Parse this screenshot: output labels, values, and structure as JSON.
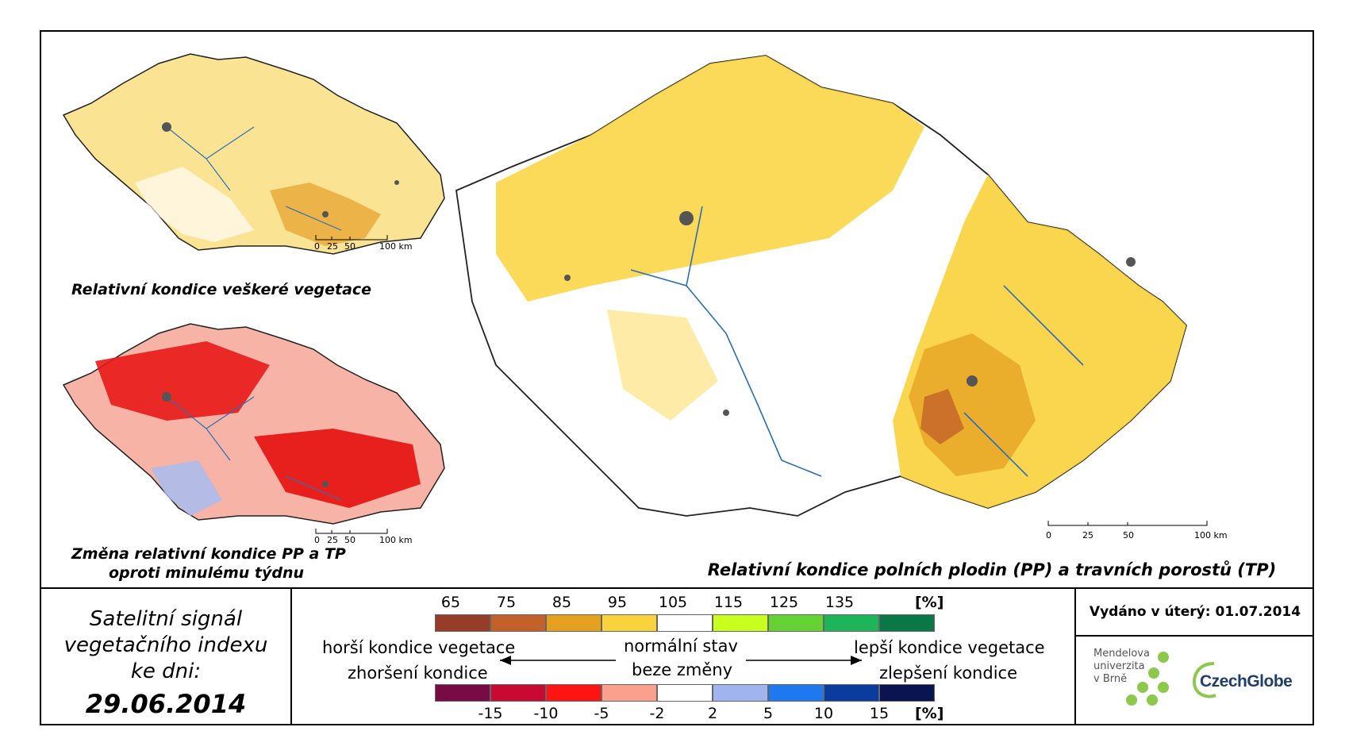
{
  "maps": {
    "small_top": {
      "caption": "Relativní kondice veškeré vegetace",
      "scale_labels": [
        "0",
        "25",
        "50",
        "100 km"
      ]
    },
    "small_bottom": {
      "caption_line1": "Změna relativní kondice PP a TP",
      "caption_line2": "oproti minulému týdnu",
      "scale_labels": [
        "0",
        "25",
        "50",
        "100 km"
      ]
    },
    "main": {
      "caption": "Relativní kondice polních plodin (PP) a travních porostů (TP)",
      "scale_labels": [
        "0",
        "25",
        "50",
        "100 km"
      ]
    }
  },
  "date_block": {
    "line1": "Satelitní signál",
    "line2": "vegetačního indexu",
    "line3": "ke dni:",
    "date": "29.06.2014"
  },
  "legend": {
    "top_scale": {
      "ticks": [
        "65",
        "75",
        "85",
        "95",
        "105",
        "115",
        "125",
        "135"
      ],
      "unit": "[%]",
      "colors": [
        "#963c28",
        "#c3612a",
        "#e6a020",
        "#fad23c",
        "#ffffff",
        "#c8ff1e",
        "#64d232",
        "#1eb45a",
        "#0a7846"
      ]
    },
    "bottom_scale": {
      "ticks": [
        "-15",
        "-10",
        "-5",
        "-2",
        "2",
        "5",
        "10",
        "15"
      ],
      "unit": "[%]",
      "colors": [
        "#780a46",
        "#c80a32",
        "#ff1414",
        "#faa08c",
        "#ffffff",
        "#a0b4f0",
        "#1e78f0",
        "#0a3ca0",
        "#0a1450"
      ]
    },
    "left_top": "horší kondice vegetace",
    "left_bottom": "zhoršení kondice",
    "center_top": "normální stav",
    "center_bottom": "beze změny",
    "right_top": "lepší kondice vegetace",
    "right_bottom": "zlepšení kondice"
  },
  "issued": {
    "label": "Vydáno v úterý:",
    "date": "01.07.2014"
  },
  "logos": {
    "mendel_line1": "Mendelova",
    "mendel_line2": "univerzita",
    "mendel_line3": "v Brně",
    "czechglobe": "CzechGlobe"
  }
}
